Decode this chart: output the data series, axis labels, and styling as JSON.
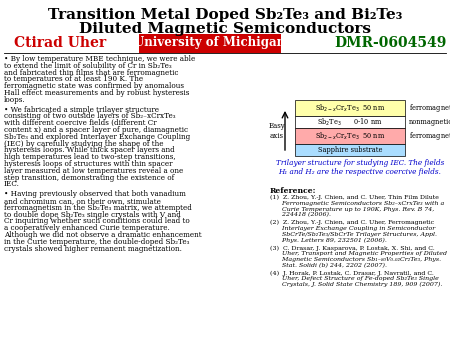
{
  "title_line1": "Transition Metal Doped Sb₂Te₃ and Bi₂Te₃",
  "title_line2": "Diluted Magnetic Semiconductors",
  "author": "Ctirad Uher",
  "institution": "University of Michigan",
  "grant": "DMR-0604549",
  "bg_color": "#ffffff",
  "title_color": "#000000",
  "author_color": "#cc0000",
  "grant_color": "#006600",
  "institution_bg": "#cc0000",
  "institution_text_color": "#ffffff",
  "bullet1": "• By low temperature MBE technique, we were able to extend the limit of solubility of Cr in Sb₂Te₃ and fabricated thin films that are ferromagnetic to temperatures of at least 190 K. The ferromagnetic state was confirmed by anomalous Hall effect measurements and by robust hysteresis loops.",
  "bullet2": "• We fabricated a simple trilayer structure consisting of two outside layers of Sb₂₋xCrxTe₃ with different coercive fields (different Cr content x) and a spacer layer of pure, diamagnetic Sb₂Te₃ and explored Interlayer Exchange Coupling (IEC) by carefully studying the shape of the hysteresis loops. While thick spacer layers and high temperatures lead to two-step transitions, hysteresis loops of structures with thin spacer layer measured at low temperatures reveal a one step transition, demonstrating the existence of IEC.",
  "bullet3": "• Having previously observed that both vanadium and chromium can, on their own, stimulate ferromagnetism in the Sb₂Te₃ matrix, we attempted to double dope Sb₂Te₃ single crystals with V and Cr inquiring whether such conditions could lead to a cooperatively enhanced Curie temperature. Although we did not observe a dramatic enhancement in the Curie temperature, the double-doped Sb₂Te₃ crystals showed higher remanent magnetization.",
  "trilayer_caption": "Trilayer structure for studying IEC. The fields\nH₁ and H₂ are the respective coercive fields.",
  "layer1_color": "#ffffaa",
  "layer2_color": "#ffffff",
  "layer3_color": "#ffaaaa",
  "layer4_color": "#aaddff",
  "ref_title": "Reference:",
  "ref1": "(1)  Z. Zhou, Y.-J. Chien, and C. Uher, Thin Film Dilute\n      Ferromagnetic Semiconductors Sb₂₋xCrxTe₃ with a\n      Curie Temperature up to 190K, Phys. Rev. B 74,\n      224418 (2006).",
  "ref2": "(2)  Z. Zhou, Y.-J. Chien, and C. Uher, Ferromagnetic\n      Interlayer Exchange Coupling in Semiconductor\n      SbCrTe/Sb₂Te₃/SbCrTe Trilayer Structures, Appl.\n      Phys. Letters 89, 232501 (2006).",
  "ref3": "(3)  C. Drasar, J. Kasparova, P. Lostak, X. Shi, and C.\n      Uher, Transport and Magnetic Properties of Diluted\n      Magnetic Semiconductors Sb₁₋₈₀V₀.₀₂Cr₂Te₃, Phys.\n      Stat. Solidi (b) 244, 2202 (2007).",
  "ref4": "(4)  J. Horak, P. Lostak, C. Drasar, J. Navratil, and C.\n      Uher, Defect Structure of Fe-doped Sb₂Te₃ Single\n      Crystals, J. Solid State Chemistry 189, 909 (2007)."
}
